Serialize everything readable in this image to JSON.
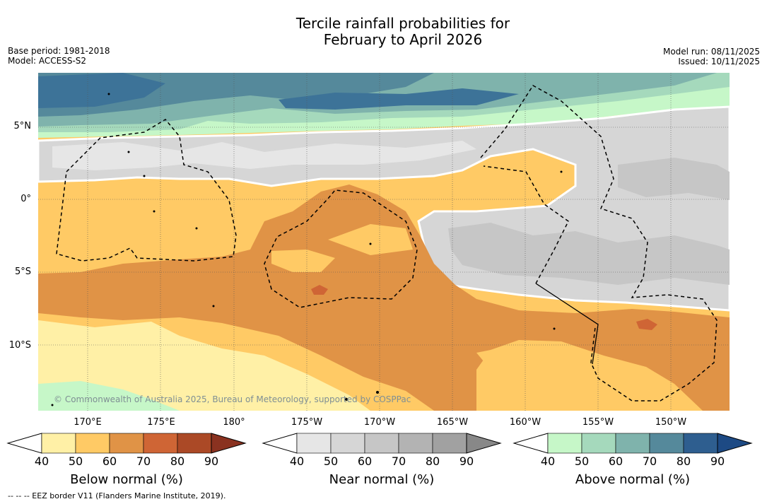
{
  "title": {
    "line1": "Tercile rainfall probabilities for",
    "line2": "February to April 2026"
  },
  "meta": {
    "base_period": "Base period: 1981-2018",
    "model": "Model: ACCESS-S2",
    "model_run": "Model run: 08/11/2025",
    "issued": "Issued: 10/11/2025"
  },
  "map": {
    "latitude_labels": [
      "5°N",
      "0°",
      "5°S",
      "10°S"
    ],
    "longitude_labels": [
      "170°E",
      "175°E",
      "180°",
      "175°W",
      "170°W",
      "165°W",
      "160°W",
      "155°W",
      "150°W"
    ],
    "credit": "© Commonwealth of Australia 2025, Bureau of Meteorology, supported by COSPPac"
  },
  "legend": {
    "below_normal": {
      "title": "Below normal (%)",
      "ticks": [
        "40",
        "50",
        "60",
        "70",
        "80",
        "90"
      ],
      "colors": [
        "#fff0a6",
        "#ffca65",
        "#e09346",
        "#cf6535",
        "#ab4926",
        "#8a3220"
      ]
    },
    "near_normal": {
      "title": "Near normal (%)",
      "ticks": [
        "40",
        "50",
        "60",
        "70",
        "80",
        "90"
      ],
      "colors": [
        "#e6e6e6",
        "#d6d6d6",
        "#c6c6c6",
        "#b3b3b3",
        "#a1a1a1",
        "#888888"
      ]
    },
    "above_normal": {
      "title": "Above normal (%)",
      "ticks": [
        "40",
        "50",
        "60",
        "70",
        "80",
        "90"
      ],
      "colors": [
        "#c6f7c8",
        "#a5d9bc",
        "#7fb3ac",
        "#55899b",
        "#2e5e8f",
        "#1d4a84"
      ]
    }
  },
  "footnote": "--  --  -- EEZ border V11 (Flanders Marine Institute, 2019)."
}
